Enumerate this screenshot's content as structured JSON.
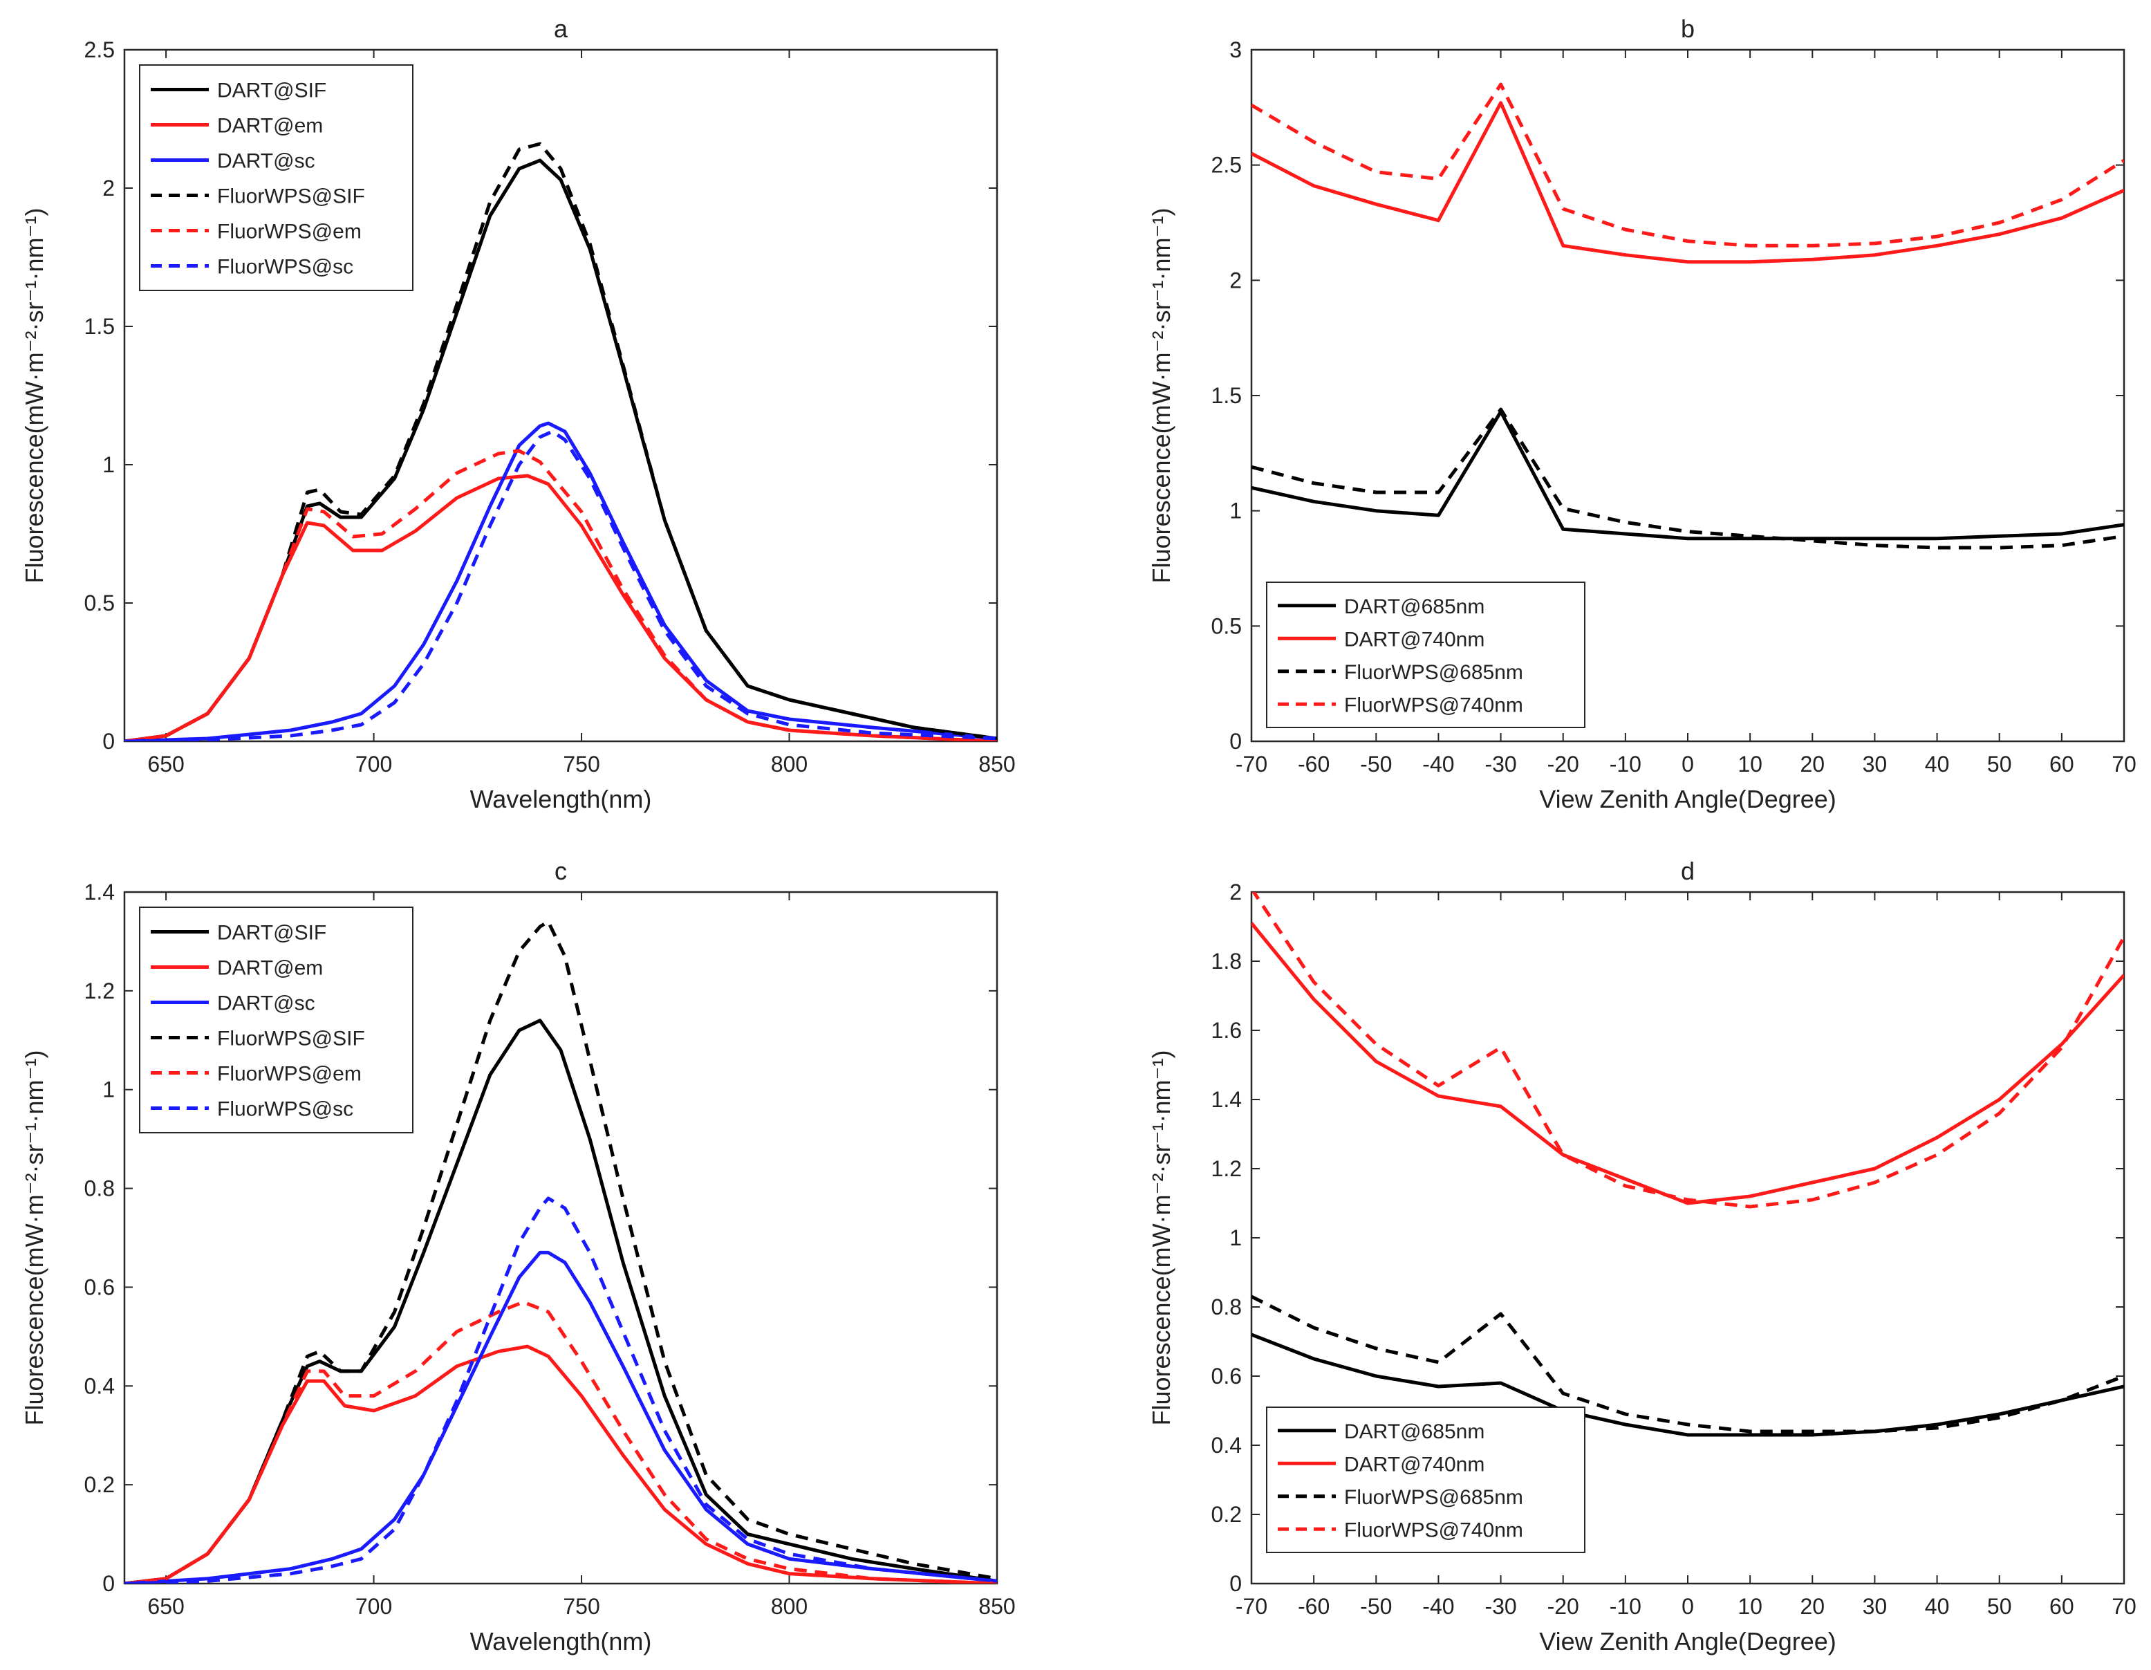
{
  "figure": {
    "colors": {
      "black": "#000000",
      "red": "#ff1a1a",
      "blue": "#1a1aff"
    }
  },
  "chart_data": [
    {
      "id": "a",
      "type": "line",
      "title": "a",
      "xlabel": "Wavelength(nm)",
      "ylabel": "Fluorescence(mW·m⁻²·sr⁻¹·nm⁻¹)",
      "xlim": [
        640,
        850
      ],
      "ylim": [
        0,
        2.5
      ],
      "xticks": [
        650,
        700,
        750,
        800,
        850
      ],
      "yticks": [
        0,
        0.5,
        1,
        1.5,
        2,
        2.5
      ],
      "ytick_labels": [
        "0",
        "0.5",
        "1",
        "1.5",
        "2",
        "2.5"
      ],
      "legend_position": "top-left",
      "series": [
        {
          "name": "DART@SIF",
          "color": "black",
          "dash": false,
          "x": [
            640,
            650,
            660,
            670,
            678,
            684,
            687,
            692,
            697,
            705,
            712,
            720,
            728,
            735,
            740,
            745,
            752,
            760,
            770,
            780,
            790,
            800,
            815,
            830,
            850
          ],
          "y": [
            0,
            0.02,
            0.1,
            0.3,
            0.6,
            0.85,
            0.86,
            0.81,
            0.81,
            0.95,
            1.2,
            1.55,
            1.9,
            2.07,
            2.1,
            2.03,
            1.78,
            1.35,
            0.8,
            0.4,
            0.2,
            0.15,
            0.1,
            0.05,
            0.01
          ]
        },
        {
          "name": "DART@em",
          "color": "red",
          "dash": false,
          "x": [
            640,
            650,
            660,
            670,
            678,
            684,
            688,
            695,
            702,
            710,
            720,
            730,
            737,
            742,
            750,
            760,
            770,
            780,
            790,
            800,
            820,
            850
          ],
          "y": [
            0,
            0.02,
            0.1,
            0.3,
            0.6,
            0.79,
            0.78,
            0.69,
            0.69,
            0.76,
            0.88,
            0.95,
            0.96,
            0.93,
            0.78,
            0.53,
            0.3,
            0.15,
            0.07,
            0.04,
            0.02,
            0.0
          ]
        },
        {
          "name": "DART@sc",
          "color": "blue",
          "dash": false,
          "x": [
            640,
            660,
            680,
            690,
            697,
            705,
            712,
            720,
            728,
            735,
            740,
            742,
            746,
            752,
            760,
            770,
            780,
            790,
            800,
            820,
            850
          ],
          "y": [
            0,
            0.01,
            0.04,
            0.07,
            0.1,
            0.2,
            0.35,
            0.58,
            0.85,
            1.07,
            1.14,
            1.15,
            1.12,
            0.97,
            0.72,
            0.42,
            0.22,
            0.11,
            0.08,
            0.05,
            0.01
          ]
        },
        {
          "name": "FluorWPS@SIF",
          "color": "black",
          "dash": true,
          "x": [
            640,
            650,
            660,
            670,
            678,
            684,
            687,
            692,
            697,
            705,
            712,
            720,
            728,
            735,
            740,
            745,
            752,
            760,
            770,
            780,
            790,
            800,
            815,
            830,
            850
          ],
          "y": [
            0,
            0.02,
            0.1,
            0.3,
            0.6,
            0.9,
            0.91,
            0.83,
            0.82,
            0.96,
            1.22,
            1.58,
            1.95,
            2.14,
            2.16,
            2.07,
            1.8,
            1.36,
            0.8,
            0.4,
            0.2,
            0.15,
            0.1,
            0.05,
            0.01
          ]
        },
        {
          "name": "FluorWPS@em",
          "color": "red",
          "dash": true,
          "x": [
            640,
            650,
            660,
            670,
            678,
            684,
            688,
            695,
            702,
            710,
            720,
            730,
            735,
            740,
            750,
            760,
            770,
            780,
            790,
            800,
            820,
            850
          ],
          "y": [
            0,
            0.02,
            0.1,
            0.3,
            0.6,
            0.84,
            0.83,
            0.74,
            0.75,
            0.84,
            0.97,
            1.04,
            1.05,
            1.01,
            0.83,
            0.55,
            0.31,
            0.15,
            0.07,
            0.04,
            0.02,
            0.0
          ]
        },
        {
          "name": "FluorWPS@sc",
          "color": "blue",
          "dash": true,
          "x": [
            640,
            660,
            680,
            690,
            697,
            705,
            712,
            720,
            728,
            735,
            740,
            743,
            746,
            752,
            760,
            770,
            780,
            790,
            800,
            820,
            850
          ],
          "y": [
            0,
            0.005,
            0.02,
            0.04,
            0.06,
            0.14,
            0.28,
            0.5,
            0.78,
            1.0,
            1.1,
            1.12,
            1.09,
            0.95,
            0.7,
            0.4,
            0.2,
            0.1,
            0.06,
            0.03,
            0.01
          ]
        }
      ]
    },
    {
      "id": "b",
      "type": "line",
      "title": "b",
      "xlabel": "View Zenith Angle(Degree)",
      "ylabel": "Fluorescence(mW·m⁻²·sr⁻¹·nm⁻¹)",
      "xlim": [
        -70,
        70
      ],
      "ylim": [
        0,
        3
      ],
      "xticks": [
        -70,
        -60,
        -50,
        -40,
        -30,
        -20,
        -10,
        0,
        10,
        20,
        30,
        40,
        50,
        60,
        70
      ],
      "yticks": [
        0,
        0.5,
        1,
        1.5,
        2,
        2.5,
        3
      ],
      "ytick_labels": [
        "0",
        "0.5",
        "1",
        "1.5",
        "2",
        "2.5",
        "3"
      ],
      "legend_position": "bottom-left",
      "series": [
        {
          "name": "DART@685nm",
          "color": "black",
          "dash": false,
          "x": [
            -70,
            -60,
            -50,
            -40,
            -30,
            -20,
            -10,
            0,
            10,
            20,
            30,
            40,
            50,
            60,
            70
          ],
          "y": [
            1.1,
            1.04,
            1.0,
            0.98,
            1.43,
            0.92,
            0.9,
            0.88,
            0.88,
            0.88,
            0.88,
            0.88,
            0.89,
            0.9,
            0.94
          ]
        },
        {
          "name": "DART@740nm",
          "color": "red",
          "dash": false,
          "x": [
            -70,
            -60,
            -50,
            -40,
            -30,
            -20,
            -10,
            0,
            10,
            20,
            30,
            40,
            50,
            60,
            70
          ],
          "y": [
            2.55,
            2.41,
            2.33,
            2.26,
            2.77,
            2.15,
            2.11,
            2.08,
            2.08,
            2.09,
            2.11,
            2.15,
            2.2,
            2.27,
            2.39
          ]
        },
        {
          "name": "FluorWPS@685nm",
          "color": "black",
          "dash": true,
          "x": [
            -70,
            -60,
            -50,
            -40,
            -30,
            -20,
            -10,
            0,
            10,
            20,
            30,
            40,
            50,
            60,
            70
          ],
          "y": [
            1.19,
            1.12,
            1.08,
            1.08,
            1.44,
            1.01,
            0.95,
            0.91,
            0.89,
            0.87,
            0.85,
            0.84,
            0.84,
            0.85,
            0.89
          ]
        },
        {
          "name": "FluorWPS@740nm",
          "color": "red",
          "dash": true,
          "x": [
            -70,
            -60,
            -50,
            -40,
            -30,
            -20,
            -10,
            0,
            10,
            20,
            30,
            40,
            50,
            60,
            70
          ],
          "y": [
            2.76,
            2.6,
            2.47,
            2.44,
            2.85,
            2.31,
            2.22,
            2.17,
            2.15,
            2.15,
            2.16,
            2.19,
            2.25,
            2.35,
            2.52
          ]
        }
      ]
    },
    {
      "id": "c",
      "type": "line",
      "title": "c",
      "xlabel": "Wavelength(nm)",
      "ylabel": "Fluorescence(mW·m⁻²·sr⁻¹·nm⁻¹)",
      "xlim": [
        640,
        850
      ],
      "ylim": [
        0,
        1.4
      ],
      "xticks": [
        650,
        700,
        750,
        800,
        850
      ],
      "yticks": [
        0,
        0.2,
        0.4,
        0.6,
        0.8,
        1,
        1.2,
        1.4
      ],
      "ytick_labels": [
        "0",
        "0.2",
        "0.4",
        "0.6",
        "0.8",
        "1",
        "1.2",
        "1.4"
      ],
      "legend_position": "top-left",
      "series": [
        {
          "name": "DART@SIF",
          "color": "black",
          "dash": false,
          "x": [
            640,
            650,
            660,
            670,
            678,
            684,
            687,
            692,
            697,
            705,
            712,
            720,
            728,
            735,
            740,
            745,
            752,
            760,
            770,
            780,
            790,
            800,
            815,
            830,
            850
          ],
          "y": [
            0,
            0.01,
            0.06,
            0.17,
            0.33,
            0.44,
            0.45,
            0.43,
            0.43,
            0.52,
            0.67,
            0.85,
            1.03,
            1.12,
            1.14,
            1.08,
            0.9,
            0.65,
            0.38,
            0.18,
            0.1,
            0.08,
            0.05,
            0.03,
            0.005
          ]
        },
        {
          "name": "DART@em",
          "color": "red",
          "dash": false,
          "x": [
            640,
            650,
            660,
            670,
            678,
            684,
            688,
            693,
            700,
            710,
            720,
            730,
            737,
            742,
            750,
            760,
            770,
            780,
            790,
            800,
            820,
            850
          ],
          "y": [
            0,
            0.01,
            0.06,
            0.17,
            0.32,
            0.41,
            0.41,
            0.36,
            0.35,
            0.38,
            0.44,
            0.47,
            0.48,
            0.46,
            0.38,
            0.26,
            0.15,
            0.08,
            0.04,
            0.02,
            0.01,
            0.0
          ]
        },
        {
          "name": "DART@sc",
          "color": "blue",
          "dash": false,
          "x": [
            640,
            660,
            680,
            690,
            697,
            705,
            712,
            720,
            728,
            735,
            740,
            742,
            746,
            752,
            760,
            770,
            780,
            790,
            800,
            820,
            850
          ],
          "y": [
            0,
            0.01,
            0.03,
            0.05,
            0.07,
            0.13,
            0.22,
            0.36,
            0.5,
            0.62,
            0.67,
            0.67,
            0.65,
            0.57,
            0.44,
            0.27,
            0.15,
            0.08,
            0.05,
            0.03,
            0.005
          ]
        },
        {
          "name": "FluorWPS@SIF",
          "color": "black",
          "dash": true,
          "x": [
            640,
            650,
            660,
            670,
            678,
            684,
            687,
            692,
            697,
            705,
            712,
            720,
            728,
            735,
            740,
            742,
            746,
            752,
            760,
            770,
            780,
            790,
            800,
            815,
            830,
            850
          ],
          "y": [
            0,
            0.01,
            0.06,
            0.17,
            0.33,
            0.46,
            0.47,
            0.43,
            0.43,
            0.55,
            0.72,
            0.93,
            1.14,
            1.28,
            1.33,
            1.34,
            1.27,
            1.06,
            0.78,
            0.45,
            0.22,
            0.13,
            0.1,
            0.07,
            0.04,
            0.01
          ]
        },
        {
          "name": "FluorWPS@em",
          "color": "red",
          "dash": true,
          "x": [
            640,
            650,
            660,
            670,
            678,
            684,
            688,
            693,
            700,
            710,
            720,
            730,
            736,
            742,
            750,
            760,
            770,
            780,
            790,
            800,
            820,
            850
          ],
          "y": [
            0,
            0.01,
            0.06,
            0.17,
            0.32,
            0.43,
            0.43,
            0.38,
            0.38,
            0.43,
            0.51,
            0.55,
            0.57,
            0.55,
            0.45,
            0.31,
            0.18,
            0.09,
            0.05,
            0.03,
            0.01,
            0.0
          ]
        },
        {
          "name": "FluorWPS@sc",
          "color": "blue",
          "dash": true,
          "x": [
            640,
            660,
            680,
            690,
            697,
            705,
            712,
            720,
            728,
            735,
            740,
            742,
            746,
            752,
            760,
            770,
            780,
            790,
            800,
            820,
            850
          ],
          "y": [
            0,
            0.005,
            0.02,
            0.035,
            0.05,
            0.11,
            0.22,
            0.37,
            0.54,
            0.69,
            0.76,
            0.78,
            0.76,
            0.67,
            0.51,
            0.31,
            0.16,
            0.09,
            0.06,
            0.03,
            0.005
          ]
        }
      ]
    },
    {
      "id": "d",
      "type": "line",
      "title": "d",
      "xlabel": "View Zenith Angle(Degree)",
      "ylabel": "Fluorescence(mW·m⁻²·sr⁻¹·nm⁻¹)",
      "xlim": [
        -70,
        70
      ],
      "ylim": [
        0,
        2
      ],
      "xticks": [
        -70,
        -60,
        -50,
        -40,
        -30,
        -20,
        -10,
        0,
        10,
        20,
        30,
        40,
        50,
        60,
        70
      ],
      "yticks": [
        0,
        0.2,
        0.4,
        0.6,
        0.8,
        1,
        1.2,
        1.4,
        1.6,
        1.8,
        2
      ],
      "ytick_labels": [
        "0",
        "0.2",
        "0.4",
        "0.6",
        "0.8",
        "1",
        "1.2",
        "1.4",
        "1.6",
        "1.8",
        "2"
      ],
      "legend_position": "bottom-left",
      "series": [
        {
          "name": "DART@685nm",
          "color": "black",
          "dash": false,
          "x": [
            -70,
            -60,
            -50,
            -40,
            -30,
            -20,
            -10,
            0,
            10,
            20,
            30,
            40,
            50,
            60,
            70
          ],
          "y": [
            0.72,
            0.65,
            0.6,
            0.57,
            0.58,
            0.5,
            0.46,
            0.43,
            0.43,
            0.43,
            0.44,
            0.46,
            0.49,
            0.53,
            0.57
          ]
        },
        {
          "name": "DART@740nm",
          "color": "red",
          "dash": false,
          "x": [
            -70,
            -60,
            -50,
            -40,
            -30,
            -20,
            -10,
            0,
            10,
            20,
            30,
            40,
            50,
            60,
            70
          ],
          "y": [
            1.91,
            1.69,
            1.51,
            1.41,
            1.38,
            1.24,
            1.17,
            1.1,
            1.12,
            1.16,
            1.2,
            1.29,
            1.4,
            1.56,
            1.76
          ]
        },
        {
          "name": "FluorWPS@685nm",
          "color": "black",
          "dash": true,
          "x": [
            -70,
            -60,
            -50,
            -40,
            -30,
            -20,
            -10,
            0,
            10,
            20,
            30,
            40,
            50,
            60,
            70
          ],
          "y": [
            0.83,
            0.74,
            0.68,
            0.64,
            0.78,
            0.55,
            0.49,
            0.46,
            0.44,
            0.44,
            0.44,
            0.45,
            0.48,
            0.53,
            0.6
          ]
        },
        {
          "name": "FluorWPS@740nm",
          "color": "red",
          "dash": true,
          "x": [
            -70,
            -60,
            -50,
            -40,
            -30,
            -20,
            -10,
            0,
            10,
            20,
            30,
            40,
            50,
            60,
            70
          ],
          "y": [
            2.01,
            1.74,
            1.56,
            1.44,
            1.55,
            1.24,
            1.15,
            1.11,
            1.09,
            1.11,
            1.16,
            1.24,
            1.36,
            1.55,
            1.87
          ]
        }
      ]
    }
  ]
}
